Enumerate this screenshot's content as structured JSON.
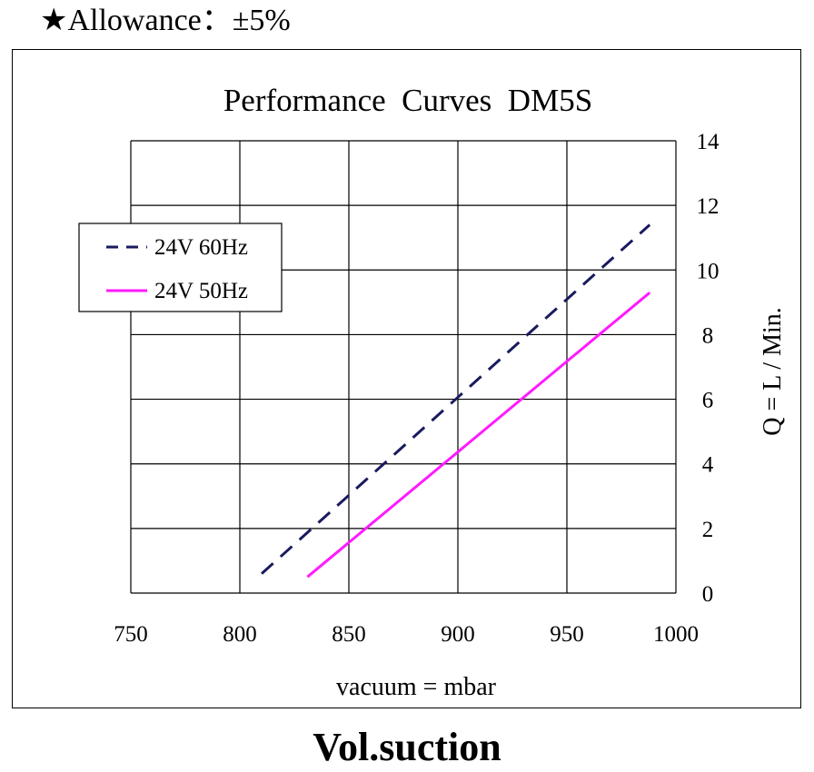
{
  "header": {
    "star_glyph": "★",
    "allowance": "Allowance：±5%"
  },
  "caption": "Vol.suction",
  "chart_data": {
    "type": "line",
    "title": "Performance  Curves  DM5S",
    "xlabel": "vacuum = mbar",
    "ylabel": "Q = L / Min.",
    "xlim": [
      750,
      1000
    ],
    "ylim": [
      0,
      14
    ],
    "x_ticks": [
      750,
      800,
      850,
      900,
      950,
      1000
    ],
    "y_ticks": [
      0,
      2,
      4,
      6,
      8,
      10,
      12,
      14
    ],
    "y_axis_side": "right",
    "grid": true,
    "legend_position": "top-left",
    "series": [
      {
        "name": "24V 60Hz",
        "color": "#1a1a5e",
        "dash": "dashed",
        "x": [
          810,
          988
        ],
        "y": [
          0.6,
          11.4
        ]
      },
      {
        "name": "24V 50Hz",
        "color": "#ff1aff",
        "dash": "solid",
        "x": [
          831,
          988
        ],
        "y": [
          0.5,
          9.3
        ]
      }
    ]
  }
}
